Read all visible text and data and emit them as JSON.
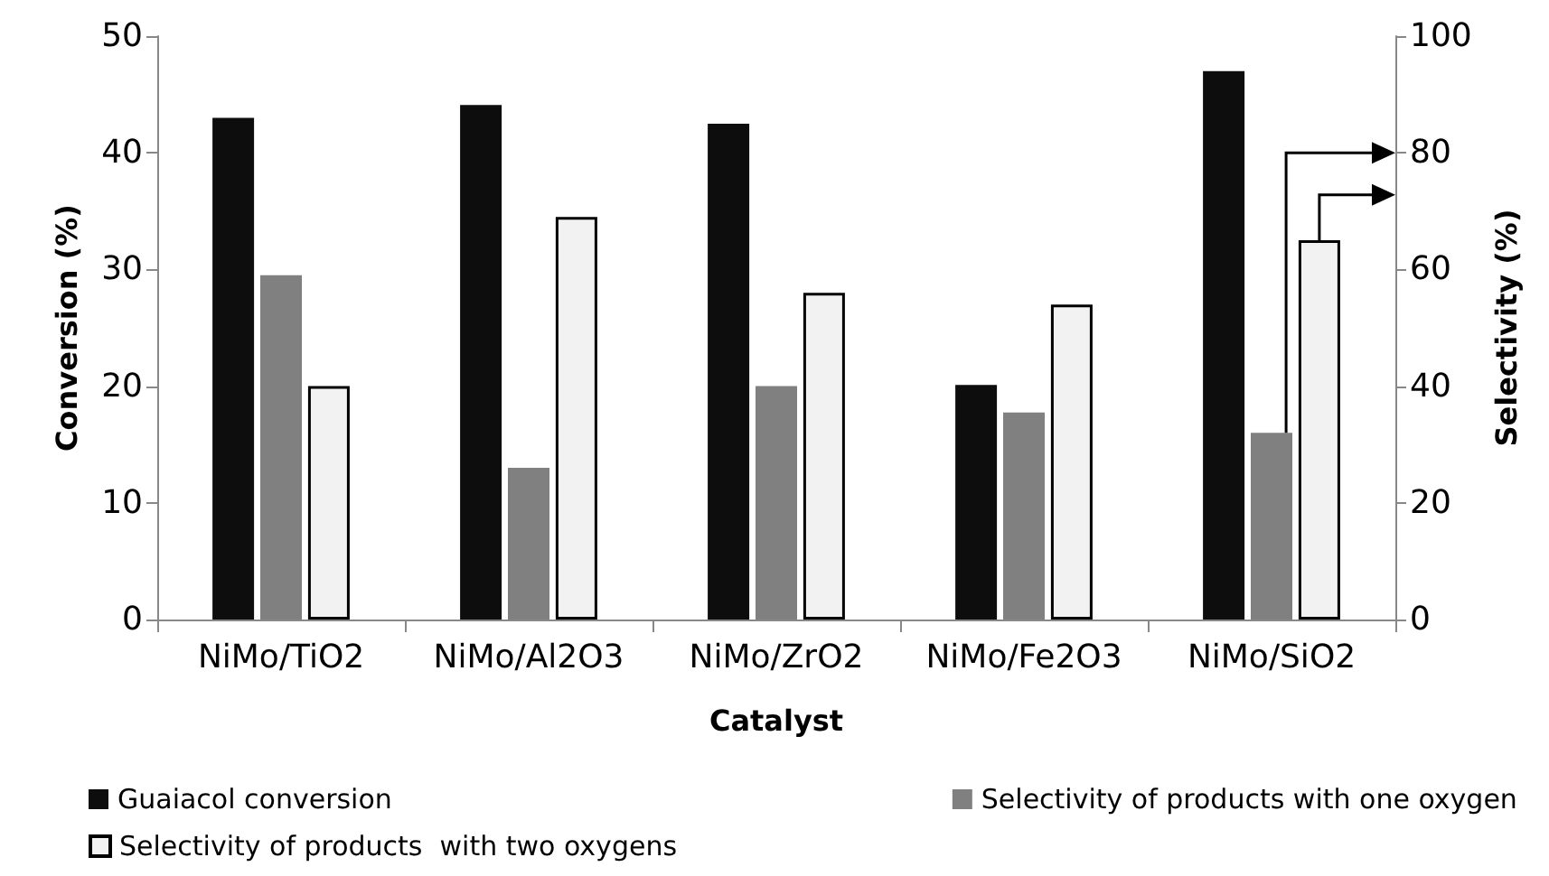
{
  "chart_data": {
    "type": "bar",
    "xlabel": "Catalyst",
    "ylabel": "Conversion (%)",
    "y2label": "Selectivity (%)",
    "categories": [
      "NiMo/TiO2",
      "NiMo/Al2O3",
      "NiMo/ZrO2",
      "NiMo/Fe2O3",
      "NiMo/SiO2"
    ],
    "series": [
      {
        "name": "Guaiacol conversion",
        "color": "#0d0d0d",
        "values": [
          43,
          44.1,
          42.5,
          20.1,
          47
        ]
      },
      {
        "name": "Selectivity of products with one oxygen",
        "color": "#808080",
        "axis": "y2",
        "values": [
          59,
          26,
          40,
          35.5,
          32
        ]
      },
      {
        "name": "Selectivity of products  with two oxygens",
        "color": "#f2f2f2",
        "axis": "y2",
        "values": [
          40,
          69,
          56,
          54,
          65
        ]
      }
    ],
    "ylim": [
      0,
      50
    ],
    "yticks": [
      0,
      10,
      20,
      30,
      40,
      50
    ],
    "y2lim": [
      0,
      100
    ],
    "y2ticks": [
      0,
      20,
      40,
      60,
      80,
      100
    ],
    "grid": false,
    "legend": "bottom"
  }
}
